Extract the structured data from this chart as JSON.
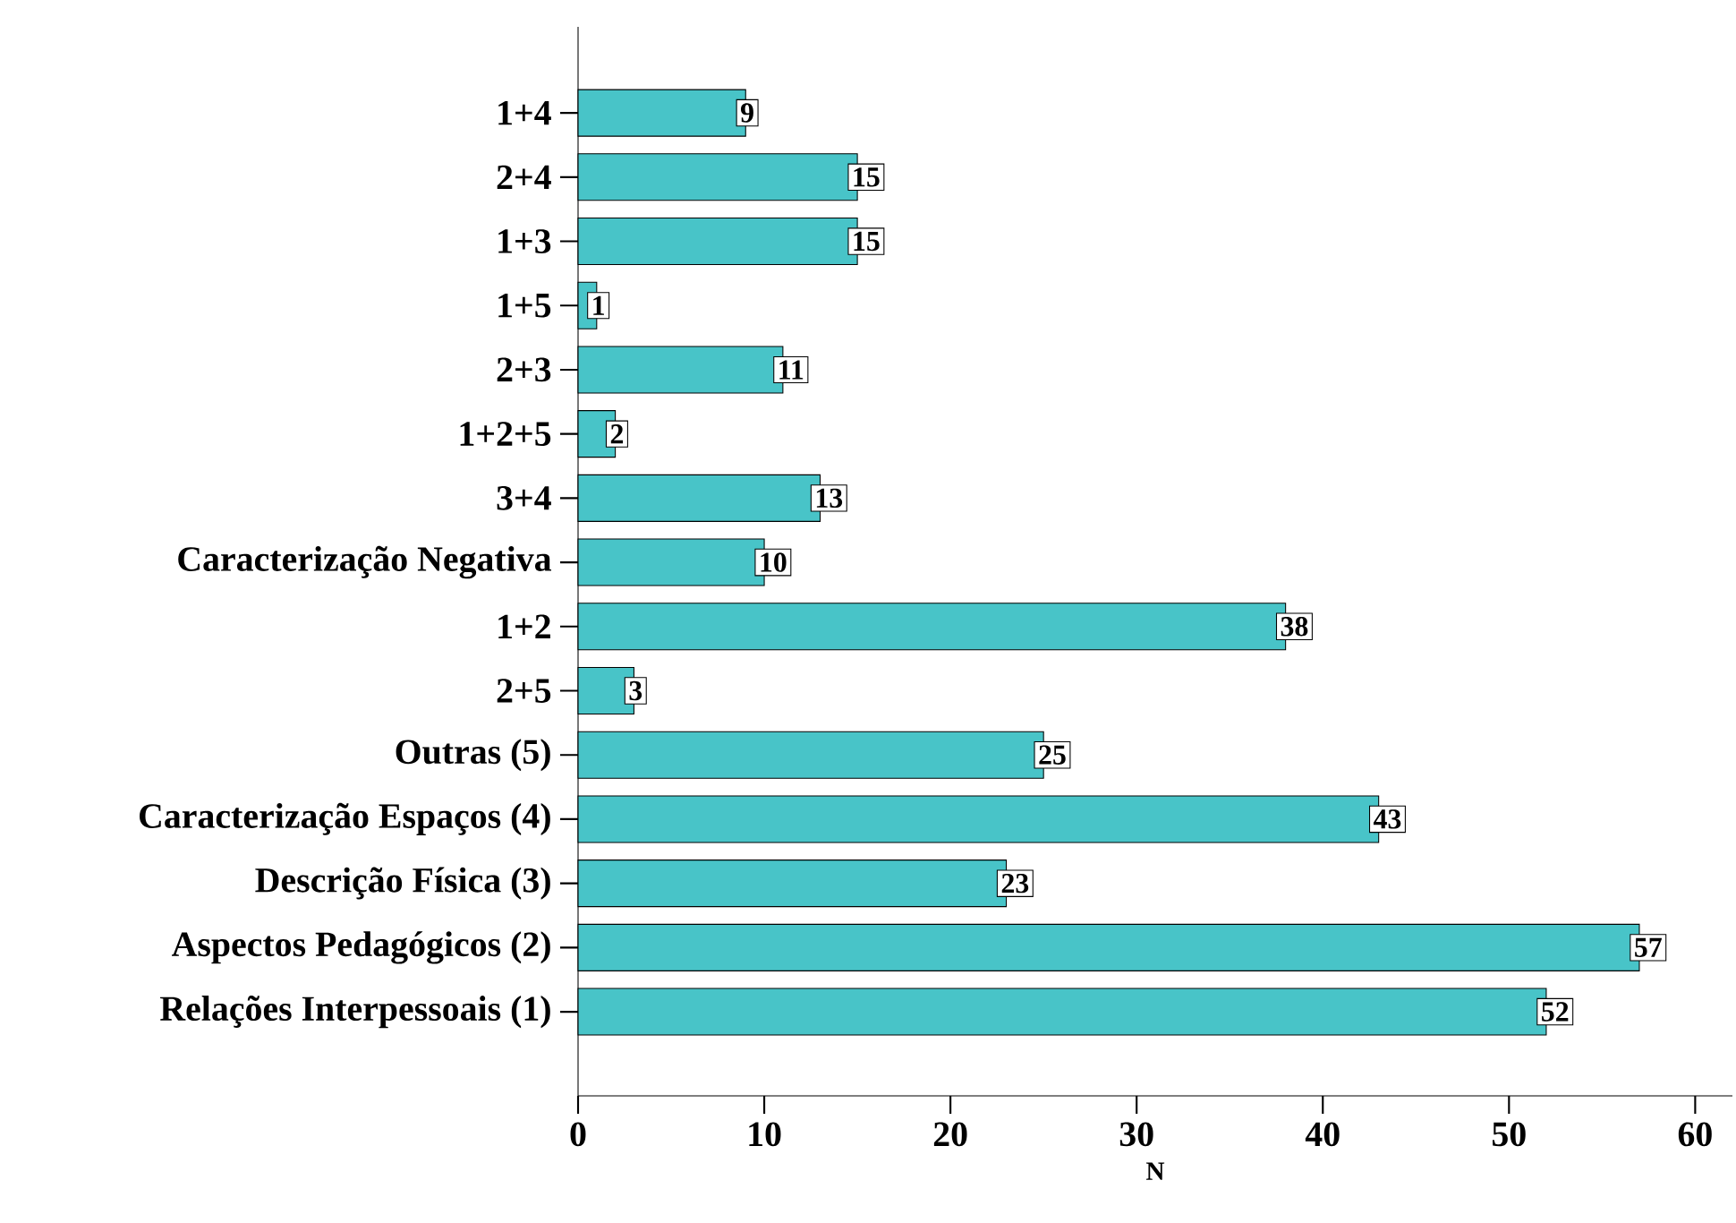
{
  "chart_data": {
    "type": "bar",
    "orientation": "horizontal",
    "xlabel": "N",
    "categories": [
      "1+4",
      "2+4",
      "1+3",
      "1+5",
      "2+3",
      "1+2+5",
      "3+4",
      "Caracterização Negativa",
      "1+2",
      "2+5",
      "Outras (5)",
      "Caracterização Espaços (4)",
      "Descrição Física (3)",
      "Aspectos Pedagógicos (2)",
      "Relações Interpessoais (1)"
    ],
    "values": [
      9,
      15,
      15,
      1,
      11,
      2,
      13,
      10,
      38,
      3,
      25,
      43,
      23,
      57,
      52
    ],
    "color": "#48c4c8",
    "data_labels": true,
    "xlim": [
      0,
      62
    ],
    "xticks": [
      0,
      10,
      20,
      30,
      40,
      50,
      60
    ]
  }
}
